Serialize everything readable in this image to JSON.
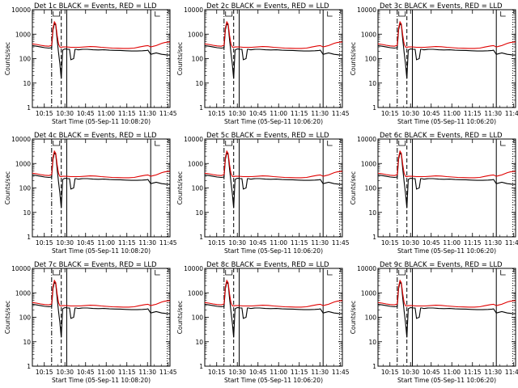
{
  "figure": {
    "panels": [
      {
        "title": "Det 1c BLACK = Events, RED = LLD",
        "xlabel": "Start Time (05-Sep-11 10:08:20)"
      },
      {
        "title": "Det 2c BLACK = Events, RED = LLD",
        "xlabel": "Start Time (05-Sep-11 10:06:20)"
      },
      {
        "title": "Det 3c BLACK = Events, RED = LLD",
        "xlabel": "Start Time (05-Sep-11 10:06:20)"
      },
      {
        "title": "Det 4c BLACK = Events, RED = LLD",
        "xlabel": "Start Time (05-Sep-11 10:08:20)"
      },
      {
        "title": "Det 5c BLACK = Events, RED = LLD",
        "xlabel": "Start Time (05-Sep-11 10:06:20)"
      },
      {
        "title": "Det 6c BLACK = Events, RED = LLD",
        "xlabel": "Start Time (05-Sep-11 10:06:20)"
      },
      {
        "title": "Det 7c BLACK = Events, RED = LLD",
        "xlabel": "Start Time (05-Sep-11 10:08:20)"
      },
      {
        "title": "Det 8c BLACK = Events, RED = LLD",
        "xlabel": "Start Time (05-Sep-11 10:06:20)"
      },
      {
        "title": "Det 9c BLACK = Events, RED = LLD",
        "xlabel": "Start Time (05-Sep-11 10:06:20)"
      }
    ]
  },
  "chart_data": {
    "type": "line",
    "ylabel": "Counts/sec",
    "y_scale": "log",
    "ylim": [
      1,
      10000
    ],
    "y_ticks": [
      "1",
      "10",
      "100",
      "1000",
      "10000"
    ],
    "x_unit": "minutes after 10:06:20",
    "xlim": [
      0,
      100
    ],
    "x_ticks": [
      {
        "label": "10:15",
        "value": 8.67
      },
      {
        "label": "10:30",
        "value": 23.67
      },
      {
        "label": "10:45",
        "value": 38.67
      },
      {
        "label": "11:00",
        "value": 53.67
      },
      {
        "label": "11:15",
        "value": 68.67
      },
      {
        "label": "11:30",
        "value": 83.67
      },
      {
        "label": "11:45",
        "value": 98.67
      }
    ],
    "series": [
      {
        "name": "Events",
        "color": "#000000",
        "x": [
          0,
          3,
          6,
          9,
          12,
          14,
          15,
          16,
          17,
          18,
          19,
          20,
          21,
          22,
          23,
          24,
          25,
          27,
          28,
          30,
          31,
          32,
          33,
          34,
          35,
          36,
          37,
          38,
          40,
          44,
          48,
          52,
          56,
          60,
          64,
          68,
          72,
          76,
          80,
          83,
          84,
          86,
          88,
          90,
          92,
          94,
          96,
          98,
          100
        ],
        "y": [
          340,
          320,
          300,
          280,
          270,
          280,
          1500,
          2700,
          2300,
          600,
          180,
          60,
          15,
          220,
          240,
          250,
          240,
          240,
          90,
          100,
          240,
          240,
          230,
          230,
          235,
          238,
          240,
          240,
          240,
          230,
          225,
          230,
          220,
          218,
          215,
          210,
          205,
          205,
          210,
          215,
          220,
          150,
          160,
          170,
          160,
          150,
          145,
          140,
          140
        ]
      },
      {
        "name": "LLD",
        "color": "#e00000",
        "x": [
          0,
          3,
          6,
          9,
          12,
          14,
          15,
          16,
          17,
          18,
          19,
          20,
          21,
          22,
          23,
          24,
          25,
          28,
          30,
          34,
          38,
          42,
          46,
          50,
          54,
          58,
          62,
          66,
          70,
          74,
          78,
          82,
          84,
          86,
          88,
          90,
          92,
          94,
          96,
          98,
          100
        ],
        "y": [
          400,
          380,
          350,
          330,
          320,
          350,
          1800,
          3200,
          2600,
          900,
          400,
          300,
          290,
          300,
          300,
          300,
          300,
          290,
          290,
          290,
          300,
          310,
          305,
          290,
          280,
          270,
          265,
          260,
          260,
          270,
          300,
          330,
          340,
          300,
          320,
          340,
          380,
          420,
          450,
          470,
          480
        ]
      }
    ],
    "vertical_markers": [
      {
        "style": "dash-dot",
        "x": 14
      },
      {
        "style": "dashed",
        "x": 21
      },
      {
        "style": "solid",
        "x": 25
      },
      {
        "style": "solid",
        "x": 86
      },
      {
        "style": "dotted",
        "x": 98
      }
    ]
  }
}
